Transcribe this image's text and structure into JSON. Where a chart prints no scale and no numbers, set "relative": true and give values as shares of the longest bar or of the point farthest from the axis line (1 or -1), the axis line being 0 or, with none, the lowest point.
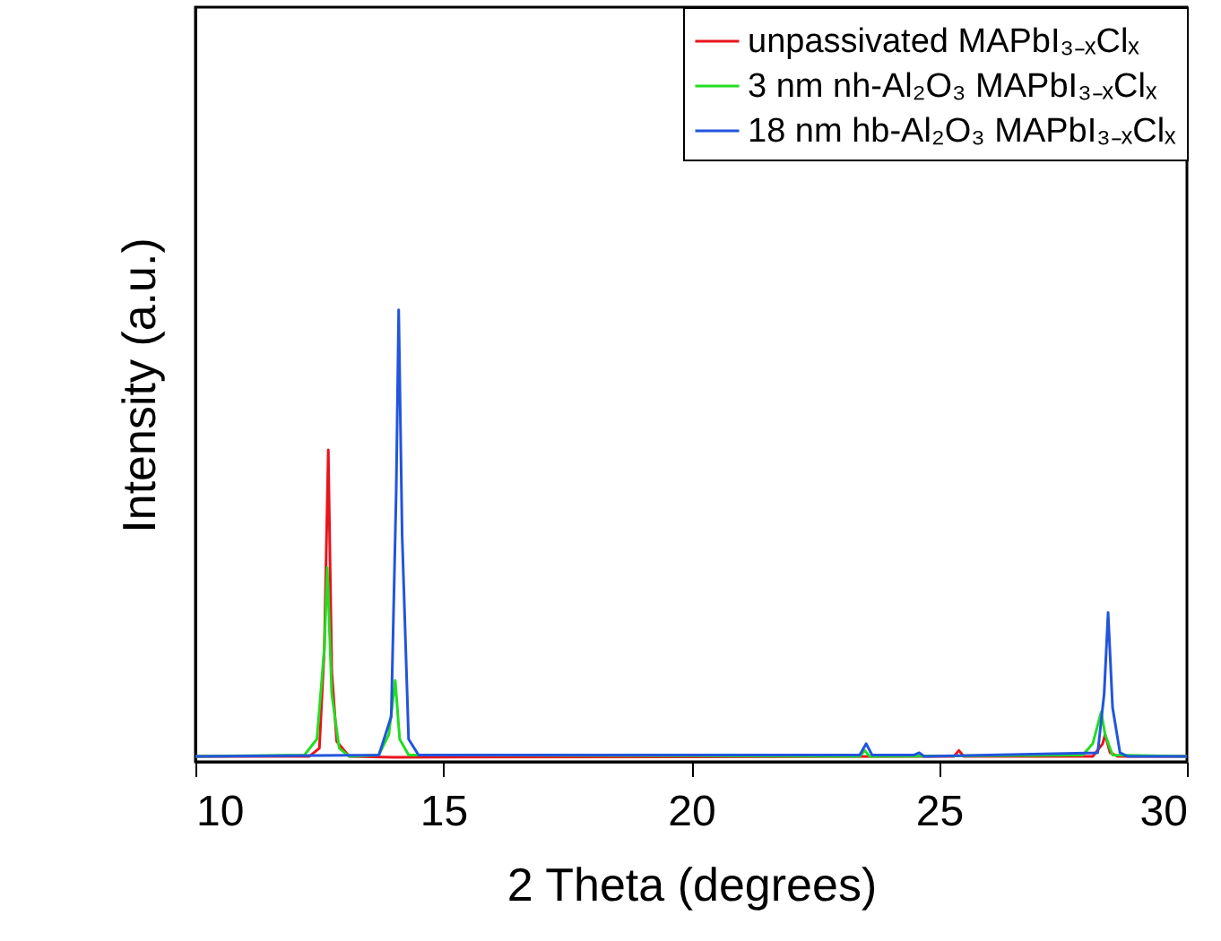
{
  "chart_data": {
    "type": "line",
    "relative": true,
    "xlabel": "2 Theta (degrees)",
    "ylabel": "Intensity (a.u.)",
    "xlim": [
      10,
      30
    ],
    "xticks": [
      10,
      15,
      20,
      25,
      30
    ],
    "tick_labels": "x",
    "grid": false,
    "legend": "top right",
    "marker": "none",
    "line_style": "solid",
    "series": [
      {
        "name": "unpassivated MAPbI₃₋ₓClₓ",
        "color": "#e8141c",
        "x": [
          10,
          12.3,
          12.5,
          12.6,
          12.68,
          12.75,
          12.85,
          13.1,
          14.0,
          25.3,
          25.4,
          25.5,
          28.1,
          28.3,
          28.35,
          28.45,
          28.6,
          30
        ],
        "values": [
          0.012,
          0.012,
          0.03,
          0.25,
          0.69,
          0.2,
          0.045,
          0.012,
          0.01,
          0.012,
          0.025,
          0.012,
          0.012,
          0.04,
          0.06,
          0.02,
          0.012,
          0.012
        ]
      },
      {
        "name": "3 nm nh-Al₂O₃ MAPbI₃₋ₓClₓ",
        "color": "#22dd22",
        "x": [
          10,
          12.2,
          12.45,
          12.6,
          12.66,
          12.75,
          12.9,
          13.1,
          13.7,
          13.9,
          14.03,
          14.12,
          14.3,
          23.4,
          23.5,
          23.6,
          27.9,
          28.1,
          28.27,
          28.35,
          28.5,
          30
        ],
        "values": [
          0.012,
          0.015,
          0.05,
          0.25,
          0.43,
          0.15,
          0.03,
          0.012,
          0.015,
          0.06,
          0.18,
          0.05,
          0.015,
          0.012,
          0.025,
          0.012,
          0.015,
          0.04,
          0.11,
          0.06,
          0.015,
          0.012
        ]
      },
      {
        "name": "18 nm hb-Al₂O₃ MAPbI₃₋ₓClₓ",
        "color": "#2255dd",
        "x": [
          10,
          13.7,
          13.95,
          14.05,
          14.1,
          14.17,
          14.3,
          14.5,
          23.4,
          23.53,
          23.65,
          24.5,
          24.6,
          24.7,
          28.2,
          28.33,
          28.41,
          28.5,
          28.65,
          28.8,
          30
        ],
        "values": [
          0.012,
          0.015,
          0.1,
          0.6,
          1,
          0.5,
          0.05,
          0.015,
          0.015,
          0.04,
          0.015,
          0.015,
          0.02,
          0.012,
          0.02,
          0.15,
          0.33,
          0.12,
          0.02,
          0.012,
          0.012
        ]
      }
    ]
  }
}
